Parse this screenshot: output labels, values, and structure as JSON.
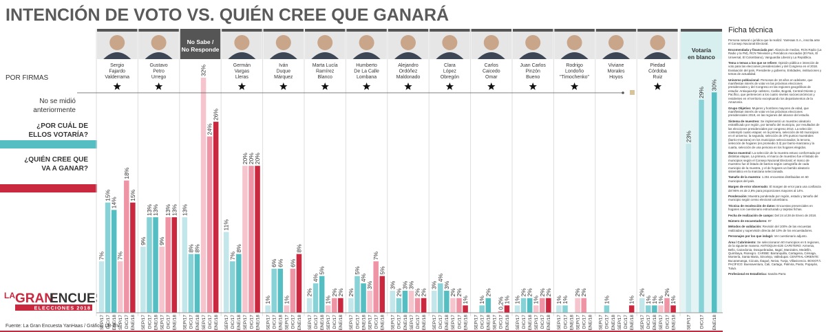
{
  "chart_data": {
    "type": "grouped-bar",
    "title": "INTENCIÓN DE VOTO VS. QUIÉN CREE QUE GANARÁ",
    "labels": {
      "firmas": "POR FIRMAS",
      "no_medido": [
        "No se midió",
        "anteriormente"
      ],
      "votaria": [
        "¿POR CUÁL DE",
        "ELLOS VOTARÍA?"
      ],
      "ganara": [
        "¿QUIÉN CREE QUE",
        "VA A GANAR?"
      ]
    },
    "dates": [
      "SEP/17",
      "DIC/17",
      "ENE/18"
    ],
    "colors": {
      "votaria": [
        "#c2e6e9",
        "#86d2d6",
        "#55bec3"
      ],
      "ganara": [
        "#f6c4cc",
        "#ef94a4",
        "#c9283f"
      ]
    },
    "ylim": [
      0,
      32
    ],
    "groups": [
      {
        "name": [
          "Sergio",
          "Fajardo",
          "Valderrama"
        ],
        "por_firmas": true,
        "votaria": [
          7,
          15,
          14
        ],
        "votaria_labels": [
          "7%",
          "15%",
          "14%"
        ],
        "ganara": [
          7,
          18,
          15
        ],
        "ganara_labels": [
          "7%",
          "18%",
          "15%"
        ]
      },
      {
        "name": [
          "Gustavo",
          "Petro",
          "Urrego"
        ],
        "por_firmas": true,
        "votaria": [
          9,
          13,
          13
        ],
        "votaria_labels": [
          "9%",
          "13%",
          "13%"
        ],
        "ganara": [
          9,
          13,
          13
        ],
        "ganara_labels": [
          "9%",
          "13%",
          "13%"
        ]
      },
      {
        "name": [
          "No Sabe /",
          "No Responde"
        ],
        "style": "dark",
        "votaria": [
          13,
          8,
          8
        ],
        "votaria_labels": [
          "13%",
          "8%",
          "8%"
        ],
        "ganara": [
          32,
          24,
          26
        ],
        "ganara_labels": [
          "32%",
          "24%",
          "26%"
        ]
      },
      {
        "name": [
          "Germán",
          "Vargas",
          "Lleras"
        ],
        "por_firmas": true,
        "votaria": [
          11,
          7,
          8
        ],
        "votaria_labels": [
          "11%",
          "7%",
          "8%"
        ],
        "ganara": [
          20,
          20,
          20
        ],
        "ganara_labels": [
          "20%",
          "20%",
          "20%"
        ]
      },
      {
        "name": [
          "Iván",
          "Duque",
          "Márquez"
        ],
        "por_firmas": true,
        "votaria": [
          1,
          6,
          6
        ],
        "votaria_labels": [
          "1%",
          "6%",
          "6%"
        ],
        "ganara": [
          1,
          6,
          8
        ],
        "ganara_labels": [
          "1%",
          "6%",
          "8%"
        ]
      },
      {
        "name": [
          "Marta Lucía",
          "Ramírez",
          "Blanco"
        ],
        "por_firmas": true,
        "votaria": [
          2,
          4,
          5
        ],
        "votaria_labels": [
          "2%",
          "4%",
          "5%"
        ],
        "ganara": [
          1,
          2,
          2
        ],
        "ganara_labels": [
          "1%",
          "2%",
          "2%"
        ]
      },
      {
        "name": [
          "Humberto",
          "De La Calle",
          "Lombana"
        ],
        "por_firmas": true,
        "votaria": [
          2,
          5,
          4
        ],
        "votaria_labels": [
          "2%",
          "5%",
          "4%"
        ],
        "ganara": [
          3,
          7,
          5
        ],
        "ganara_labels": [
          "3%",
          "7%",
          "5%"
        ]
      },
      {
        "name": [
          "Alejandro",
          "Ordóñez",
          "Maldonado"
        ],
        "por_firmas": true,
        "votaria": [
          3,
          2,
          3
        ],
        "votaria_labels": [
          "3%",
          "2%",
          "3%"
        ],
        "ganara": [
          3,
          2,
          2
        ],
        "ganara_labels": [
          "3%",
          "2%",
          "2%"
        ]
      },
      {
        "name": [
          "Clara",
          "López",
          "Obregón"
        ],
        "por_firmas": true,
        "votaria": [
          3,
          4,
          3
        ],
        "votaria_labels": [
          "3%",
          "4%",
          "3%"
        ],
        "ganara": [
          2,
          2,
          1
        ],
        "ganara_labels": [
          "2%",
          "2%",
          "1%"
        ]
      },
      {
        "name": [
          "Carlos",
          "Caicedo",
          "Omar"
        ],
        "por_firmas": true,
        "votaria": [
          null,
          1,
          2
        ],
        "votaria_labels": [
          null,
          "1%",
          "2%"
        ],
        "ganara": [
          null,
          0.2,
          1
        ],
        "ganara_labels": [
          null,
          "0,2%",
          "1%"
        ]
      },
      {
        "name": [
          "Juan Carlos",
          "Pinzón",
          "Bueno"
        ],
        "por_firmas": true,
        "votaria": [
          1,
          2,
          2
        ],
        "votaria_labels": [
          "1%",
          "2%",
          "2%"
        ],
        "ganara": [
          1,
          2,
          2
        ],
        "ganara_labels": [
          "1%",
          "2%",
          "2%"
        ]
      },
      {
        "name": [
          "Rodrigo",
          "Londoño",
          "\"Timochenko\""
        ],
        "por_firmas": true,
        "votaria": [
          1,
          1,
          null
        ],
        "votaria_labels": [
          "1%",
          "1%",
          null
        ],
        "ganara": [
          2,
          2,
          null
        ],
        "ganara_labels": [
          "2%",
          "2%",
          null
        ]
      },
      {
        "name": [
          "Viviane",
          "Morales",
          "Hoyos"
        ],
        "no_medido": true,
        "votaria": [
          null,
          1,
          null
        ],
        "votaria_labels": [
          null,
          "1%",
          null
        ],
        "ganara": [
          null,
          null,
          1
        ],
        "ganara_labels": [
          null,
          null,
          "1%"
        ]
      },
      {
        "name": [
          "Piedad",
          "Córdoba",
          "Ruiz"
        ],
        "por_firmas": true,
        "votaria": [
          2,
          1,
          1
        ],
        "votaria_labels": [
          "2%",
          "1%",
          "1%"
        ],
        "ganara": [
          1,
          2,
          1
        ],
        "ganara_labels": [
          "1%",
          "2%",
          "1%"
        ]
      },
      {
        "name": [
          "Votaría",
          "en blanco"
        ],
        "style": "blank",
        "votaria": [
          23,
          29,
          30
        ],
        "votaria_labels": [
          "23%",
          "29%",
          "30%"
        ]
      }
    ],
    "logo": {
      "la": "LA",
      "gran": "GRAN",
      "encuesta": "ENCUESTA",
      "sub": "ELECCIONES 2018"
    },
    "source": "Fuente: La Gran Encuesta YanHaas / Gráfico: LR-GV"
  },
  "ficha": {
    "title": "Ficha técnica",
    "items": [
      {
        "t": "Persona natural o jurídica que la realizó: YanHaas S.A., inscrita ante el Consejo Nacional Electoral."
      },
      {
        "k": "Encomendada y financiada por:",
        "t": "Alianza de medios, RCN Radio (La Radio y la FM), RCN Televisión y Periódicos Asociados (El País, El Universal, El Colombiano), Vanguardia Liberal y La República."
      },
      {
        "k": "Tema o temas a los que se refiere:",
        "t": "Opinión pública e intención de voto para las elecciones presidenciales y del Congreso en el 2018. Evaluación del país, Presidente y gobierno, Entidades, instituciones y temas de actualidad."
      },
      {
        "k": "Universo poblacional:",
        "t": "Personas de 18 años en adelante, que manifiestan interés de votar en las próximas elecciones presidenciales y del Congreso en las regiones geográficas de estudio: Antioquia-Eje cafetero, Caribe, Bogotá, Central-Oriente y Pacífico, que pertenecen a los cuatro niveles socioeconómicos y residentes en el territorio exceptuando los departamentos de la Amazonía."
      },
      {
        "k": "Grupo Objetivo:",
        "t": "Mujeres y hombres mayores de edad, que manifiestan interés de votar en las próximas elecciones presidenciales 2018, en las regiones del alcance del estudio."
      },
      {
        "k": "Sistema de muestreo:",
        "t": "Se implementó un muestreo aleatorio estratificado por región, por tamaño del municipio, por resultados de las elecciones presidenciales por congreso 2014. La selección contempló cuatro etapas: en la primera, selección de 60 municipios en el universo; la segunda, selección de 376 puntos muestrales (barrio-manzana) en los municipios seleccionados; la tercera, selección de hogares (en promedio 3.3) por barrio-manzana y la cuarta, selección de una persona en los hogares elegidos."
      },
      {
        "k": "Marco muestral:",
        "t": "La selección de la muestra estuvo conformada por distintas etapas. La primera, el marco de muestreo fue el listado de municipios según el Consejo Nacional Electoral; el marco de muestreo fue el listado de barrios según cartografía de cada municipio de la muestra, y el de hogares un barrido aleatorio sistemático en la manzana seleccionada."
      },
      {
        "k": "Tamaño de la muestra:",
        "t": "1.251 encuestas distribuidas en 60 municipios del país."
      },
      {
        "k": "Margen de error observado:",
        "t": "El margen de error para una confianza del 95% es de 2,8% para proporciones mayores al 14%."
      },
      {
        "k": "Ponderación:",
        "t": "Muestra ponderada por región, estado y tamaño del municipio según censo electoral colombiano."
      },
      {
        "k": "Técnica de recolección de datos:",
        "t": "Encuestas presenciales en hogares con cuestionario estructurado y tarjetas fichas."
      },
      {
        "k": "Fecha de realización de campo:",
        "t": "Del 24 al 28 de Enero de 2018."
      },
      {
        "k": "Número de encuestadores:",
        "t": "97"
      },
      {
        "k": "Métodos de validación:",
        "t": "Revisión del 100% de las encuestas realizadas y supervisión directa del 10% de los encuestadores."
      },
      {
        "k": "Personajes por los que indagó:",
        "t": "Ver cuestionario adjunto."
      },
      {
        "k": "Área / Cubrimiento:",
        "t": "Se seleccionaron 60 municipios en 5 regiones, de la siguiente manera: ANTIOQUIA-EJE CAFETERO: Armenia, Bello, Caicedonia, Dosquebradas, Itagüí, Manizales, Medellín, Quimbaya, Rionegro. CARIBE: Barranquilla, Cartagena, Ciénaga, Montería, Santa Marta, Sincelejo, Valledupar. CENTRAL-ORIENTE: Bucaramanga, Cúcuta, Ibagué, Neiva, Tunja, Villavicencio. BOGOTÁ. PACÍFICO: Buenaventura, Cali, Cartago, Palmira, Pasto, Popayán, Tuluá."
      },
      {
        "k": "Profesional en Estadística:",
        "t": "Sandra Parra"
      }
    ]
  }
}
